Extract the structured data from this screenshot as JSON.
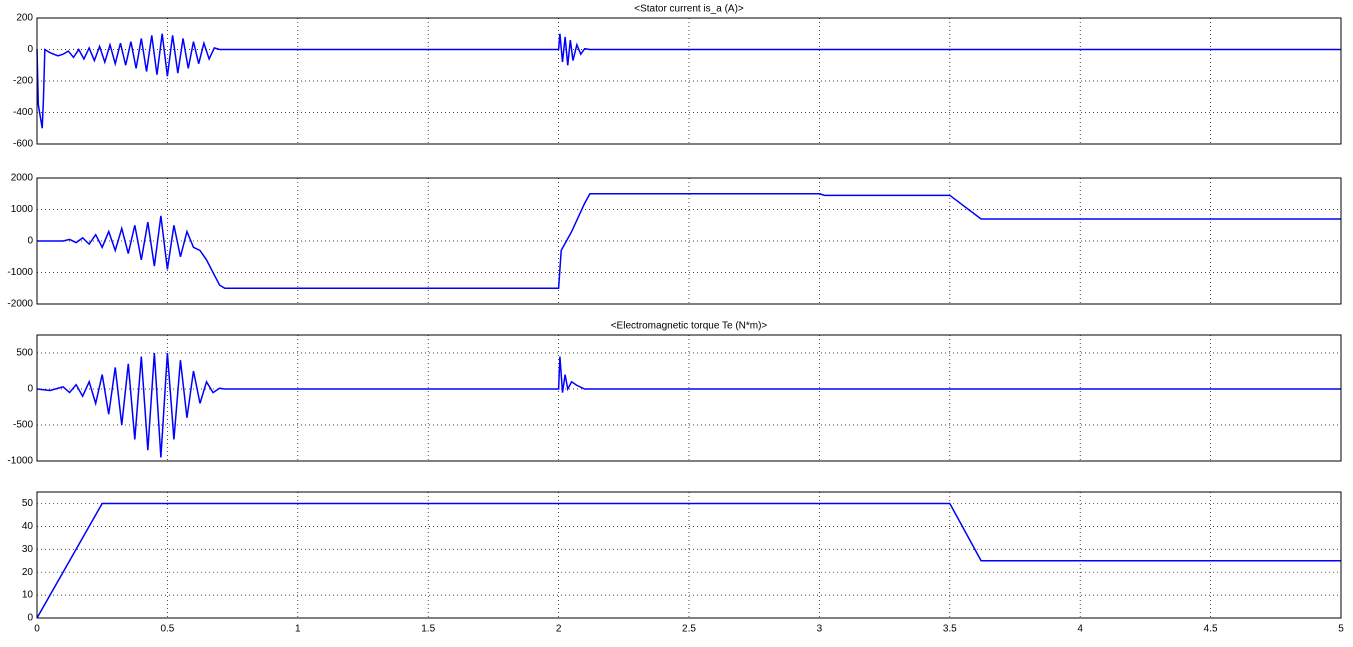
{
  "chart_data": [
    {
      "type": "line",
      "title": "<Stator current is_a (A)>",
      "color": "#0000ff",
      "grid": true,
      "xlim": [
        0,
        5
      ],
      "xticks": [
        0,
        0.5,
        1,
        1.5,
        2,
        2.5,
        3,
        3.5,
        4,
        4.5,
        5
      ],
      "ylim": [
        -600,
        200
      ],
      "yticks": [
        200,
        0,
        -200,
        -400,
        -600
      ],
      "x": [
        0,
        0.005,
        0.02,
        0.025,
        0.03,
        0.05,
        0.08,
        0.1,
        0.12,
        0.14,
        0.16,
        0.18,
        0.2,
        0.22,
        0.24,
        0.26,
        0.28,
        0.3,
        0.32,
        0.34,
        0.36,
        0.38,
        0.4,
        0.42,
        0.44,
        0.46,
        0.48,
        0.5,
        0.52,
        0.54,
        0.56,
        0.58,
        0.6,
        0.62,
        0.64,
        0.66,
        0.68,
        0.7,
        2.0,
        2.005,
        2.015,
        2.025,
        2.035,
        2.045,
        2.055,
        2.07,
        2.085,
        2.1,
        2.12,
        5
      ],
      "values": [
        0,
        -350,
        -500,
        -300,
        0,
        -20,
        -40,
        -30,
        -10,
        -50,
        0,
        -60,
        10,
        -70,
        20,
        -80,
        30,
        -90,
        40,
        -100,
        50,
        -120,
        70,
        -140,
        90,
        -160,
        100,
        -170,
        90,
        -150,
        70,
        -120,
        50,
        -90,
        40,
        -60,
        10,
        0,
        0,
        100,
        -80,
        80,
        -100,
        60,
        -70,
        30,
        -30,
        5,
        0,
        0
      ]
    },
    {
      "type": "line",
      "color": "#0000ff",
      "grid": true,
      "xlim": [
        0,
        5
      ],
      "xticks": [
        0,
        0.5,
        1,
        1.5,
        2,
        2.5,
        3,
        3.5,
        4,
        4.5,
        5
      ],
      "ylim": [
        -2000,
        2000
      ],
      "yticks": [
        2000,
        1000,
        0,
        -1000,
        -2000
      ],
      "x": [
        0,
        0.1,
        0.125,
        0.15,
        0.175,
        0.2,
        0.225,
        0.25,
        0.275,
        0.3,
        0.325,
        0.35,
        0.375,
        0.4,
        0.425,
        0.45,
        0.475,
        0.5,
        0.525,
        0.55,
        0.575,
        0.6,
        0.625,
        0.65,
        0.7,
        0.72,
        2.0,
        2.01,
        2.05,
        2.1,
        2.12,
        3.0,
        3.02,
        3.5,
        3.62,
        5
      ],
      "values": [
        0,
        0,
        50,
        -50,
        100,
        -100,
        200,
        -200,
        300,
        -300,
        400,
        -400,
        500,
        -600,
        600,
        -800,
        800,
        -900,
        500,
        -500,
        300,
        -200,
        -300,
        -600,
        -1400,
        -1500,
        -1500,
        -300,
        300,
        1200,
        1500,
        1500,
        1450,
        1450,
        700,
        700
      ]
    },
    {
      "type": "line",
      "title": "<Electromagnetic torque Te (N*m)>",
      "color": "#0000ff",
      "grid": true,
      "xlim": [
        0,
        5
      ],
      "xticks": [
        0,
        0.5,
        1,
        1.5,
        2,
        2.5,
        3,
        3.5,
        4,
        4.5,
        5
      ],
      "ylim": [
        -1000,
        750
      ],
      "yticks": [
        500,
        0,
        -500,
        -1000
      ],
      "x": [
        0,
        0.05,
        0.1,
        0.125,
        0.15,
        0.175,
        0.2,
        0.225,
        0.25,
        0.275,
        0.3,
        0.325,
        0.35,
        0.375,
        0.4,
        0.425,
        0.45,
        0.475,
        0.5,
        0.525,
        0.55,
        0.575,
        0.6,
        0.625,
        0.65,
        0.675,
        0.7,
        0.72,
        2.0,
        2.005,
        2.015,
        2.025,
        2.035,
        2.05,
        2.07,
        2.1,
        5
      ],
      "values": [
        0,
        -20,
        30,
        -50,
        60,
        -100,
        100,
        -200,
        200,
        -350,
        300,
        -500,
        350,
        -700,
        450,
        -850,
        500,
        -950,
        500,
        -700,
        400,
        -400,
        250,
        -200,
        100,
        -50,
        10,
        0,
        0,
        450,
        -50,
        200,
        0,
        100,
        50,
        0,
        0
      ]
    },
    {
      "type": "line",
      "color": "#0000ff",
      "grid": true,
      "xlim": [
        0,
        5
      ],
      "xticks": [
        0,
        0.5,
        1,
        1.5,
        2,
        2.5,
        3,
        3.5,
        4,
        4.5,
        5
      ],
      "ylim": [
        0,
        55
      ],
      "yticks": [
        50,
        40,
        30,
        20,
        10,
        0
      ],
      "x": [
        0,
        0.25,
        3.5,
        3.62,
        5
      ],
      "values": [
        0,
        50,
        50,
        25,
        25
      ]
    }
  ]
}
